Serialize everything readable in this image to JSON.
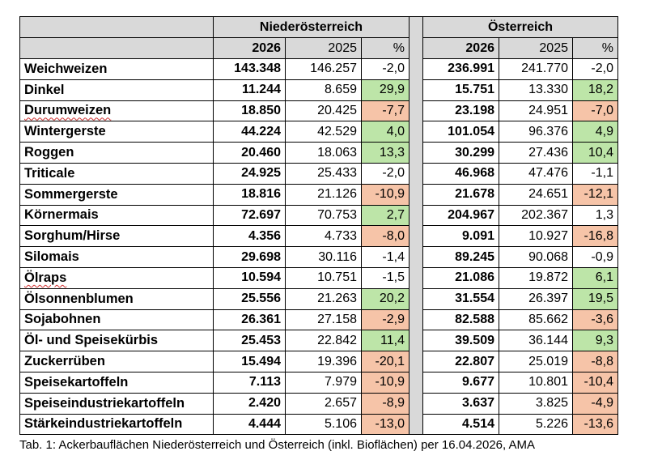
{
  "header": {
    "region1": "Niederösterreich",
    "region2": "Österreich",
    "col_2026": "2026",
    "col_2025": "2025",
    "col_pct": "%"
  },
  "status_colors": {
    "up": "#bde5a8",
    "down": "#f6c4a8",
    "header": "#d9d9d9",
    "separator": "#a6a6a6"
  },
  "rows": [
    {
      "name": "Weichweizen",
      "noe": [
        "143.348",
        "146.257",
        "-2,0",
        "none"
      ],
      "at": [
        "236.991",
        "241.770",
        "-2,0",
        "none"
      ]
    },
    {
      "name": "Dinkel",
      "noe": [
        "11.244",
        "8.659",
        "29,9",
        "up"
      ],
      "at": [
        "15.751",
        "13.330",
        "18,2",
        "up"
      ]
    },
    {
      "name": "Durumweizen",
      "spell": true,
      "noe": [
        "18.850",
        "20.425",
        "-7,7",
        "down"
      ],
      "at": [
        "23.198",
        "24.951",
        "-7,0",
        "down"
      ]
    },
    {
      "name": "Wintergerste",
      "noe": [
        "44.224",
        "42.529",
        "4,0",
        "up"
      ],
      "at": [
        "101.054",
        "96.376",
        "4,9",
        "up"
      ]
    },
    {
      "name": "Roggen",
      "noe": [
        "20.460",
        "18.063",
        "13,3",
        "up"
      ],
      "at": [
        "30.299",
        "27.436",
        "10,4",
        "up"
      ]
    },
    {
      "name": "Triticale",
      "noe": [
        "24.925",
        "25.433",
        "-2,0",
        "none"
      ],
      "at": [
        "46.968",
        "47.476",
        "-1,1",
        "none"
      ]
    },
    {
      "name": "Sommergerste",
      "noe": [
        "18.816",
        "21.126",
        "-10,9",
        "down"
      ],
      "at": [
        "21.678",
        "24.651",
        "-12,1",
        "down"
      ]
    },
    {
      "name": "Körnermais",
      "noe": [
        "72.697",
        "70.753",
        "2,7",
        "up"
      ],
      "at": [
        "204.967",
        "202.367",
        "1,3",
        "none"
      ]
    },
    {
      "name": "Sorghum/Hirse",
      "noe": [
        "4.356",
        "4.733",
        "-8,0",
        "down"
      ],
      "at": [
        "9.091",
        "10.927",
        "-16,8",
        "down"
      ]
    },
    {
      "name": "Silomais",
      "noe": [
        "29.698",
        "30.116",
        "-1,4",
        "none"
      ],
      "at": [
        "89.245",
        "90.068",
        "-0,9",
        "none"
      ]
    },
    {
      "name": "Ölraps",
      "spell": true,
      "noe": [
        "10.594",
        "10.751",
        "-1,5",
        "none"
      ],
      "at": [
        "21.086",
        "19.872",
        "6,1",
        "up"
      ]
    },
    {
      "name": "Ölsonnenblumen",
      "noe": [
        "25.556",
        "21.263",
        "20,2",
        "up"
      ],
      "at": [
        "31.554",
        "26.397",
        "19,5",
        "up"
      ]
    },
    {
      "name": "Sojabohnen",
      "noe": [
        "26.361",
        "27.158",
        "-2,9",
        "down"
      ],
      "at": [
        "82.588",
        "85.662",
        "-3,6",
        "down"
      ]
    },
    {
      "name": "Öl- und Speisekürbis",
      "noe": [
        "25.453",
        "22.842",
        "11,4",
        "up"
      ],
      "at": [
        "39.509",
        "36.144",
        "9,3",
        "up"
      ]
    },
    {
      "name": "Zuckerrüben",
      "noe": [
        "15.494",
        "19.396",
        "-20,1",
        "down"
      ],
      "at": [
        "22.807",
        "25.019",
        "-8,8",
        "down"
      ]
    },
    {
      "name": "Speisekartoffeln",
      "noe": [
        "7.113",
        "7.979",
        "-10,9",
        "down"
      ],
      "at": [
        "9.677",
        "10.801",
        "-10,4",
        "down"
      ]
    },
    {
      "name": "Speiseindustriekartoffeln",
      "noe": [
        "2.420",
        "2.657",
        "-8,9",
        "down"
      ],
      "at": [
        "3.637",
        "3.825",
        "-4,9",
        "down"
      ]
    },
    {
      "name": "Stärkeindustriekartoffeln",
      "noe": [
        "4.444",
        "5.106",
        "-13,0",
        "down"
      ],
      "at": [
        "4.514",
        "5.226",
        "-13,6",
        "down"
      ]
    }
  ],
  "caption": "Tab. 1: Ackerbauflächen Niederösterreich und Österreich (inkl. Bioflächen) per 16.04.2026, AMA"
}
